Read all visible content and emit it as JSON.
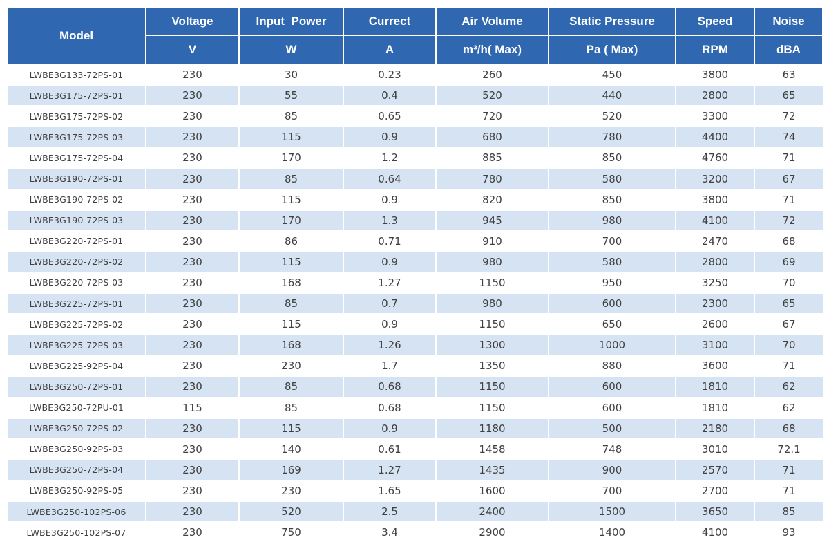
{
  "table": {
    "headers": [
      {
        "name": "Model",
        "unit": ""
      },
      {
        "name": "Voltage",
        "unit": "V"
      },
      {
        "name": "Input  Power",
        "unit": "W"
      },
      {
        "name": "Currect",
        "unit": "A"
      },
      {
        "name": "Air Volume",
        "unit": "m³/h( Max)"
      },
      {
        "name": "Static Pressure",
        "unit": "Pa ( Max)"
      },
      {
        "name": "Speed",
        "unit": "RPM"
      },
      {
        "name": "Noise",
        "unit": "dBA"
      }
    ],
    "rows": [
      [
        "LWBE3G133-72PS-01",
        "230",
        "30",
        "0.23",
        "260",
        "450",
        "3800",
        "63"
      ],
      [
        "LWBE3G175-72PS-01",
        "230",
        "55",
        "0.4",
        "520",
        "440",
        "2800",
        "65"
      ],
      [
        "LWBE3G175-72PS-02",
        "230",
        "85",
        "0.65",
        "720",
        "520",
        "3300",
        "72"
      ],
      [
        "LWBE3G175-72PS-03",
        "230",
        "115",
        "0.9",
        "680",
        "780",
        "4400",
        "74"
      ],
      [
        "LWBE3G175-72PS-04",
        "230",
        "170",
        "1.2",
        "885",
        "850",
        "4760",
        "71"
      ],
      [
        "LWBE3G190-72PS-01",
        "230",
        "85",
        "0.64",
        "780",
        "580",
        "3200",
        "67"
      ],
      [
        "LWBE3G190-72PS-02",
        "230",
        "115",
        "0.9",
        "820",
        "850",
        "3800",
        "71"
      ],
      [
        "LWBE3G190-72PS-03",
        "230",
        "170",
        "1.3",
        "945",
        "980",
        "4100",
        "72"
      ],
      [
        "LWBE3G220-72PS-01",
        "230",
        "86",
        "0.71",
        "910",
        "700",
        "2470",
        "68"
      ],
      [
        "LWBE3G220-72PS-02",
        "230",
        "115",
        "0.9",
        "980",
        "580",
        "2800",
        "69"
      ],
      [
        "LWBE3G220-72PS-03",
        "230",
        "168",
        "1.27",
        "1150",
        "950",
        "3250",
        "70"
      ],
      [
        "LWBE3G225-72PS-01",
        "230",
        "85",
        "0.7",
        "980",
        "600",
        "2300",
        "65"
      ],
      [
        "LWBE3G225-72PS-02",
        "230",
        "115",
        "0.9",
        "1150",
        "650",
        "2600",
        "67"
      ],
      [
        "LWBE3G225-72PS-03",
        "230",
        "168",
        "1.26",
        "1300",
        "1000",
        "3100",
        "70"
      ],
      [
        "LWBE3G225-92PS-04",
        "230",
        "230",
        "1.7",
        "1350",
        "880",
        "3600",
        "71"
      ],
      [
        "LWBE3G250-72PS-01",
        "230",
        "85",
        "0.68",
        "1150",
        "600",
        "1810",
        "62"
      ],
      [
        "LWBE3G250-72PU-01",
        "115",
        "85",
        "0.68",
        "1150",
        "600",
        "1810",
        "62"
      ],
      [
        "LWBE3G250-72PS-02",
        "230",
        "115",
        "0.9",
        "1180",
        "500",
        "2180",
        "68"
      ],
      [
        "LWBE3G250-92PS-03",
        "230",
        "140",
        "0.61",
        "1458",
        "748",
        "3010",
        "72.1"
      ],
      [
        "LWBE3G250-72PS-04",
        "230",
        "169",
        "1.27",
        "1435",
        "900",
        "2570",
        "71"
      ],
      [
        "LWBE3G250-92PS-05",
        "230",
        "230",
        "1.65",
        "1600",
        "700",
        "2700",
        "71"
      ],
      [
        "LWBE3G250-102PS-06",
        "230",
        "520",
        "2.5",
        "2400",
        "1500",
        "3650",
        "85"
      ],
      [
        "LWBE3G250-102PS-07",
        "230",
        "750",
        "3.4",
        "2900",
        "1400",
        "4100",
        "93"
      ]
    ]
  },
  "colors": {
    "header_bg": "#2f67b1",
    "header_text": "#ffffff",
    "stripe_bg": "#d6e3f3",
    "body_text": "#404040"
  }
}
